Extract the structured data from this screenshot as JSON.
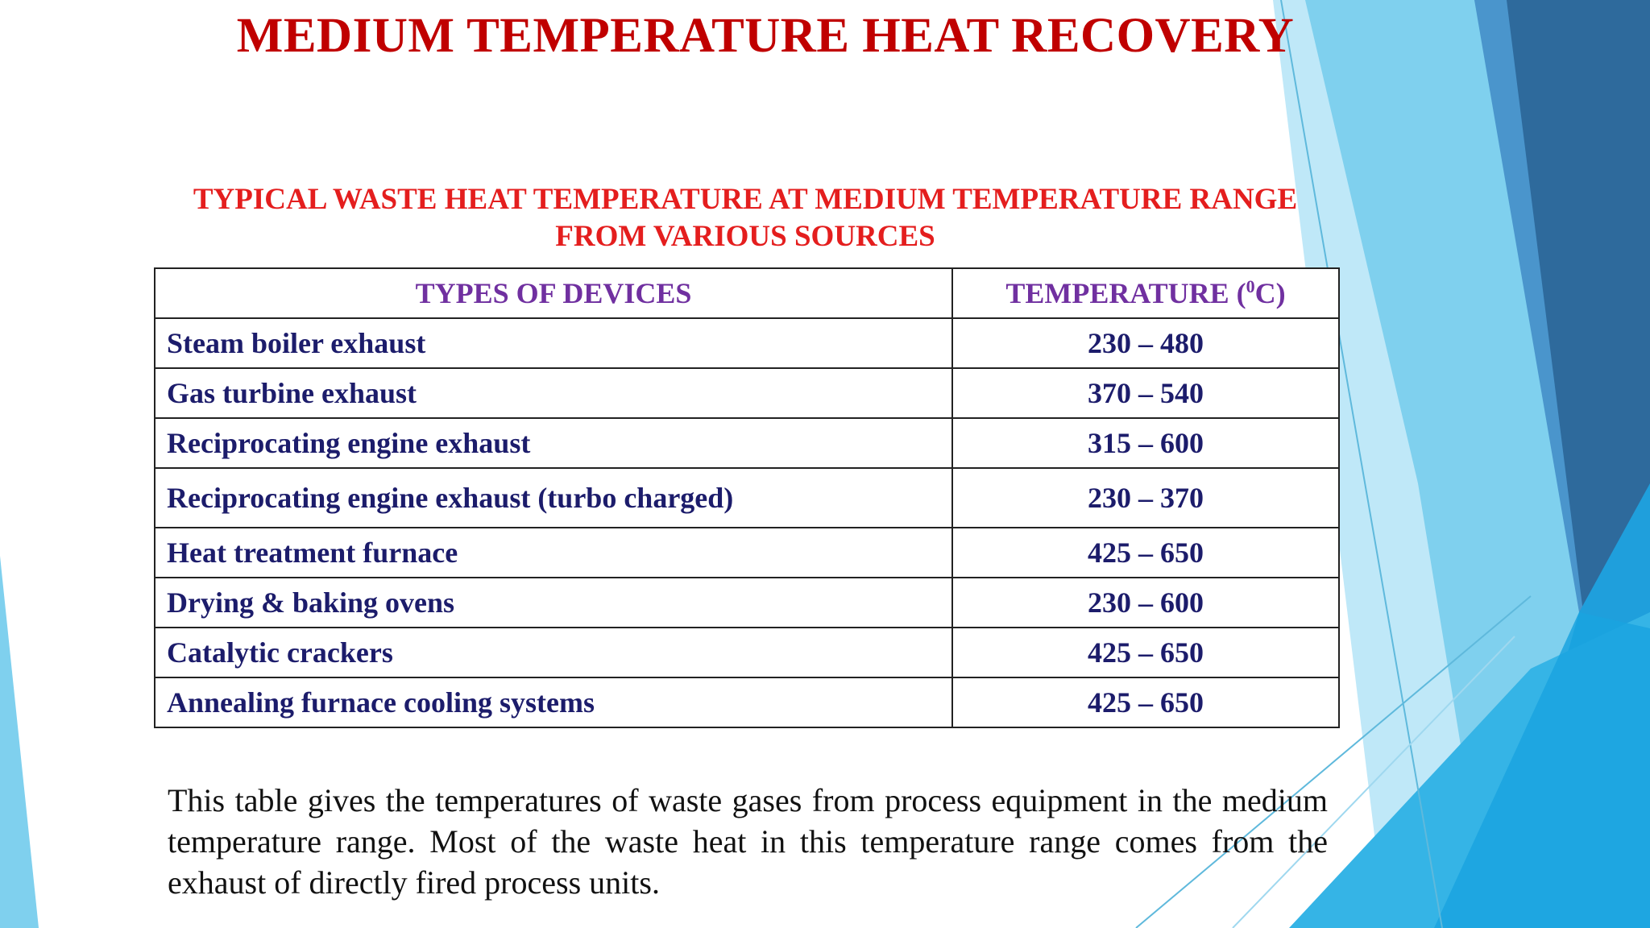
{
  "slide": {
    "title": "MEDIUM TEMPERATURE HEAT RECOVERY",
    "table_heading_line1": "TYPICAL WASTE HEAT TEMPERATURE AT MEDIUM TEMPERATURE RANGE",
    "table_heading_line2": "FROM VARIOUS SOURCES",
    "table": {
      "header_device": "TYPES OF DEVICES",
      "header_temp_prefix": "TEMPERATURE (",
      "header_temp_sup": "0",
      "header_temp_suffix": "C)",
      "rows": [
        {
          "device": "Steam boiler exhaust",
          "temperature": "230 – 480"
        },
        {
          "device": "Gas turbine exhaust",
          "temperature": "370 – 540"
        },
        {
          "device": "Reciprocating engine exhaust",
          "temperature": "315 – 600"
        },
        {
          "device": "Reciprocating engine exhaust (turbo charged)",
          "temperature": "230 – 370"
        },
        {
          "device": "Heat treatment furnace",
          "temperature": "425 – 650"
        },
        {
          "device": "Drying & baking ovens",
          "temperature": "230 – 600"
        },
        {
          "device": "Catalytic crackers",
          "temperature": "425 – 650"
        },
        {
          "device": "Annealing furnace cooling systems",
          "temperature": "425 – 650"
        }
      ]
    },
    "description": "This table gives the temperatures of waste gases from process equipment in the medium temperature range. Most of the waste heat in this temperature range comes from the exhaust of directly fired process units."
  },
  "colors": {
    "title": "#c00000",
    "table_heading": "#e41e1e",
    "header_text": "#7030a0",
    "body_text": "#1c1c6b",
    "accent_dark_blue": "#2e6a9c",
    "accent_light_blue": "#7fd0ee"
  }
}
